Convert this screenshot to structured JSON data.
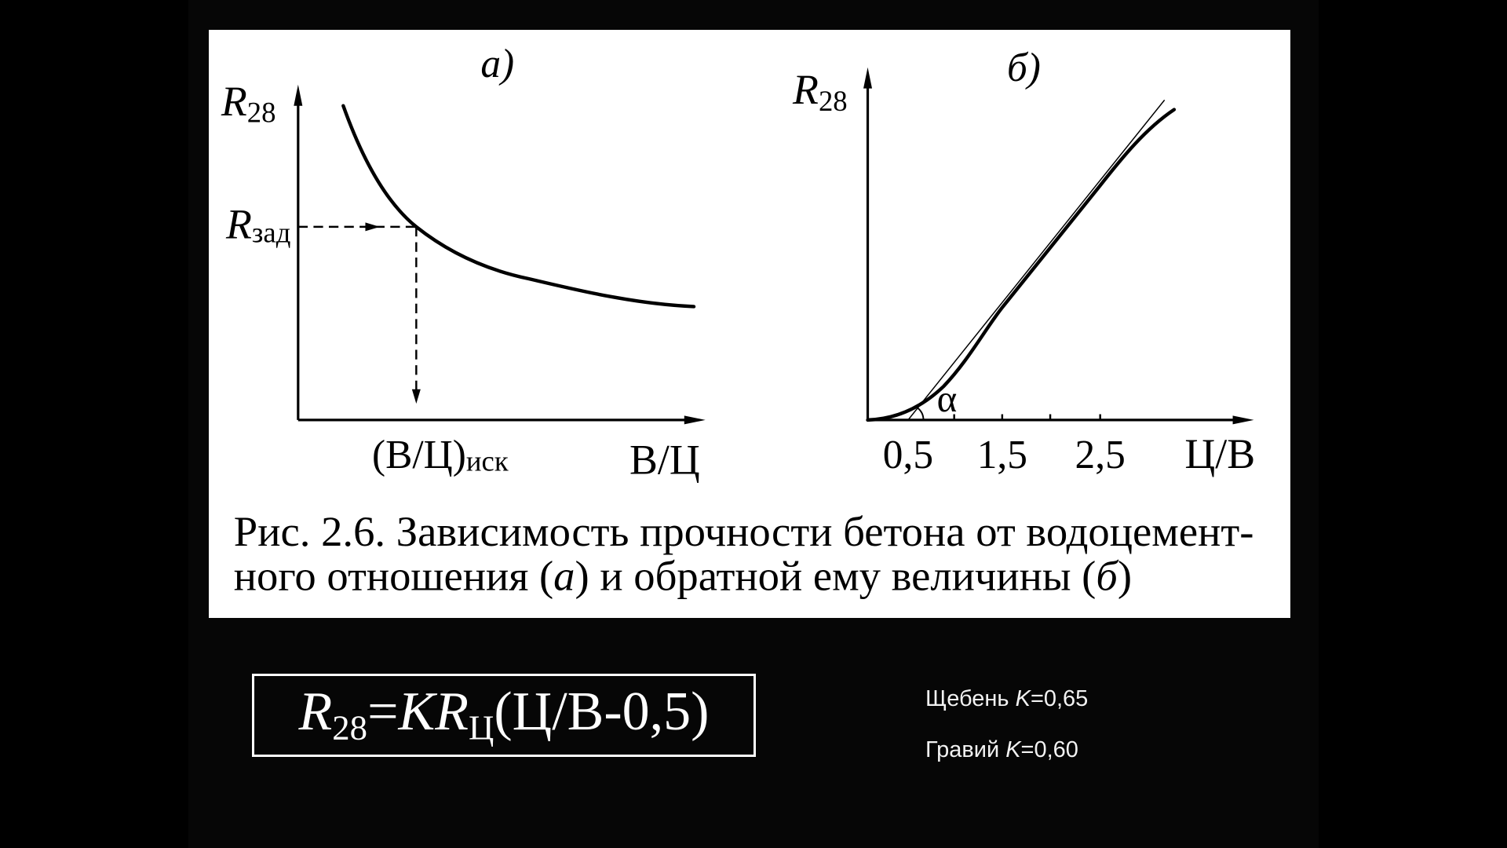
{
  "figure": {
    "panel_a": {
      "label": "а)",
      "y_axis": {
        "symbol": "R",
        "subscript": "28"
      },
      "x_axis_label": "В/Ц",
      "target_strength": {
        "symbol": "R",
        "subscript": "зад"
      },
      "required_ratio": {
        "text": "(В/Ц)",
        "subscript": "иск"
      }
    },
    "panel_b": {
      "label": "б)",
      "y_axis": {
        "symbol": "R",
        "subscript": "28"
      },
      "x_axis_label": "Ц/В",
      "x_ticks": [
        "0,5",
        "1,5",
        "2,5"
      ],
      "angle_label": "α"
    },
    "caption": {
      "line1": "Рис. 2.6. Зависимость прочности бетона от водоцемент-",
      "line2": {
        "before_a": "ного отношения (",
        "a": "а",
        "middle": ") и обратной ему величины (",
        "b": "б",
        "after_b": ")"
      }
    }
  },
  "formula": {
    "strength_symbol": "R",
    "strength_subscript": "28",
    "equals": "=",
    "coefficient": "K",
    "cement_symbol": "R",
    "cement_subscript": "Ц",
    "ratio_term": "(Ц/В-0,5)"
  },
  "coefficients": [
    {
      "material": "Щебень",
      "symbol": "K",
      "value": "=0,65"
    },
    {
      "material": "Гравий",
      "symbol": "K",
      "value": "=0,60"
    }
  ]
}
